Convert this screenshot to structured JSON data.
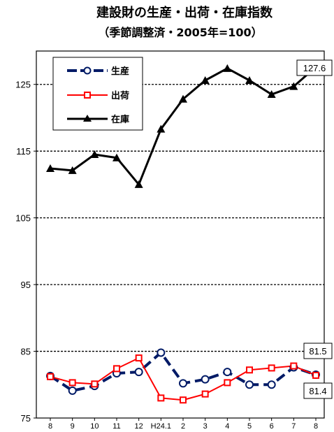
{
  "chart_data": {
    "type": "line",
    "title": "建設財の生産・出荷・在庫指数",
    "subtitle": "（季節調整済・2005年=100）",
    "categories": [
      "8",
      "9",
      "10",
      "11",
      "12",
      "H24.1",
      "2",
      "3",
      "4",
      "5",
      "6",
      "7",
      "8"
    ],
    "ylim": [
      75,
      130
    ],
    "yticks": [
      "75",
      "85",
      "95",
      "105",
      "115",
      "125"
    ],
    "grid": "dashed horizontal at 85, 95, 105, 115, 125",
    "legend_position": "top-left",
    "series": [
      {
        "name": "生産",
        "color": "#001a66",
        "line_style": "dashed",
        "marker": "open-circle",
        "values": [
          81.3,
          79.1,
          79.8,
          81.7,
          81.9,
          84.8,
          80.2,
          80.8,
          81.9,
          80.0,
          80.0,
          82.6,
          81.5
        ]
      },
      {
        "name": "出荷",
        "color": "#ff0000",
        "line_style": "solid",
        "marker": "open-square",
        "values": [
          81.2,
          80.3,
          80.1,
          82.4,
          84.0,
          78.0,
          77.7,
          78.6,
          80.3,
          82.2,
          82.5,
          82.8,
          81.4
        ]
      },
      {
        "name": "在庫",
        "color": "#000000",
        "line_style": "solid",
        "marker": "filled-triangle",
        "values": [
          112.4,
          112.1,
          114.5,
          114.0,
          110.0,
          118.3,
          122.8,
          125.6,
          127.4,
          125.6,
          123.5,
          124.7,
          127.6
        ]
      }
    ],
    "callouts": [
      {
        "label": "127.6",
        "series": "在庫"
      },
      {
        "label": "81.5",
        "series": "生産"
      },
      {
        "label": "81.4",
        "series": "出荷"
      }
    ]
  }
}
